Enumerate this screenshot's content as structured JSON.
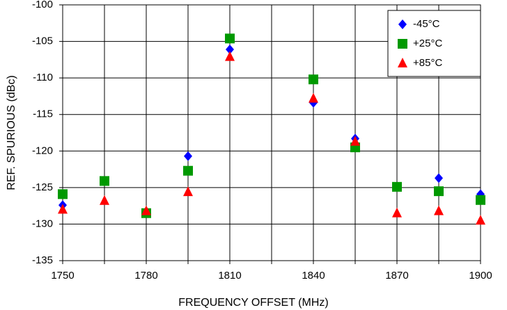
{
  "chart_data": {
    "type": "scatter",
    "x_label": "FREQUENCY OFFSET (MHz)",
    "y_label": "REF. SPURIOUS (dBc)",
    "x": [
      1750,
      1765,
      1780,
      1795,
      1810,
      1840,
      1855,
      1870,
      1885,
      1900
    ],
    "series": [
      {
        "name": "-45°C",
        "color": "#0000ff",
        "marker": "diamond",
        "values": [
          -127.4,
          null,
          -128.3,
          -120.7,
          -106.1,
          -113.4,
          -118.3,
          null,
          -123.7,
          -125.9
        ]
      },
      {
        "name": "+25°C",
        "color": "#009900",
        "marker": "square",
        "values": [
          -125.9,
          -124.1,
          -128.5,
          -122.7,
          -104.6,
          -110.2,
          -119.5,
          -124.9,
          -125.5,
          -126.7
        ]
      },
      {
        "name": "+85°C",
        "color": "#ff0000",
        "marker": "triangle",
        "values": [
          -128.0,
          -126.8,
          -128.2,
          -125.6,
          -107.1,
          -112.8,
          -118.7,
          -128.5,
          -128.2,
          -129.5
        ]
      }
    ],
    "xlim": [
      1750,
      1900
    ],
    "xticks": [
      1750,
      1780,
      1810,
      1840,
      1870,
      1900
    ],
    "xminor_ticks": [
      1765,
      1795,
      1825,
      1855,
      1885
    ],
    "ylim": [
      -135,
      -100
    ],
    "yticks": [
      -135,
      -130,
      -125,
      -120,
      -115,
      -110,
      -105,
      -100
    ],
    "grid": true,
    "legend": "upper right"
  }
}
